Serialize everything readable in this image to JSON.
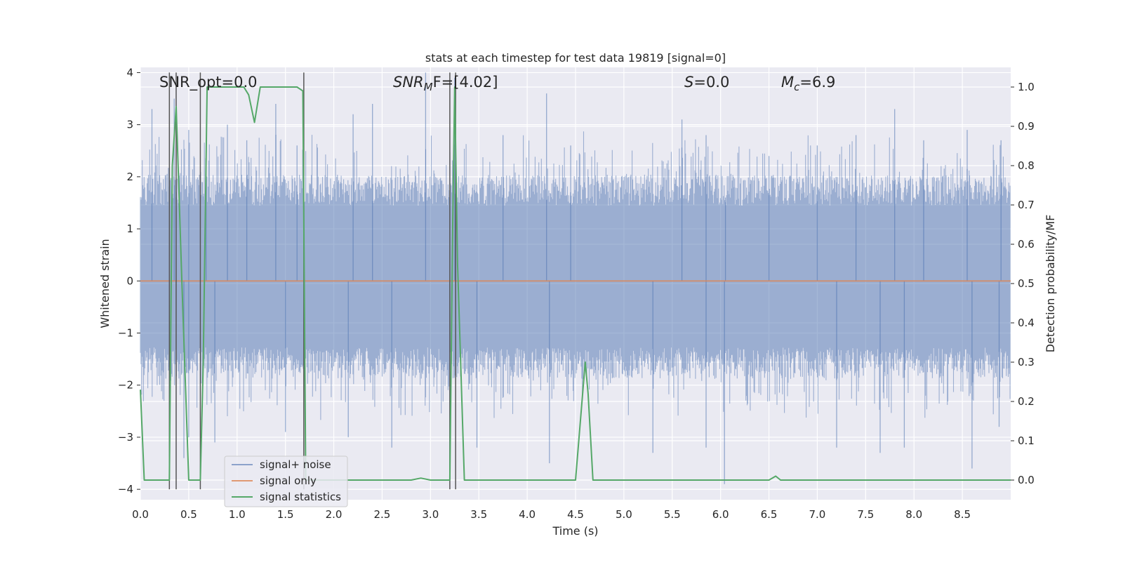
{
  "colors": {
    "background": "#ffffff",
    "plot_background": "#eaeaf2",
    "grid": "#ffffff",
    "signal_noise": "#4c72b0",
    "signal_only": "#dd8452",
    "statistics": "#55a868",
    "marker_line": "#555555"
  },
  "chart_data": {
    "type": "line",
    "title": "stats at each timestep for test data 19819 [signal=0]",
    "xlabel": "Time (s)",
    "ylabel": "Whitened strain",
    "ylabel_right": "Detection probability/MF",
    "xlim": [
      0.0,
      9.0
    ],
    "ylim": [
      -4.2,
      4.1
    ],
    "ylim_right": [
      -0.05,
      1.05
    ],
    "x_ticks": [
      "0.0",
      "0.5",
      "1.0",
      "1.5",
      "2.0",
      "2.5",
      "3.0",
      "3.5",
      "4.0",
      "4.5",
      "5.0",
      "5.5",
      "6.0",
      "6.5",
      "7.0",
      "7.5",
      "8.0",
      "8.5"
    ],
    "x_tick_values": [
      0.0,
      0.5,
      1.0,
      1.5,
      2.0,
      2.5,
      3.0,
      3.5,
      4.0,
      4.5,
      5.0,
      5.5,
      6.0,
      6.5,
      7.0,
      7.5,
      8.0,
      8.5
    ],
    "y_ticks": [
      "−4",
      "−3",
      "−2",
      "−1",
      "0",
      "1",
      "2",
      "3",
      "4"
    ],
    "y_tick_values": [
      -4,
      -3,
      -2,
      -1,
      0,
      1,
      2,
      3,
      4
    ],
    "y_right_ticks": [
      "0.0",
      "0.1",
      "0.2",
      "0.3",
      "0.4",
      "0.5",
      "0.6",
      "0.7",
      "0.8",
      "0.9",
      "1.0"
    ],
    "y_right_tick_values": [
      0.0,
      0.1,
      0.2,
      0.3,
      0.4,
      0.5,
      0.6,
      0.7,
      0.8,
      0.9,
      1.0
    ],
    "grid": true,
    "legend_position": "lower-left",
    "annotations": {
      "snr_opt": "SNR_opt=0.0",
      "snr_mf_main": "SNR",
      "snr_mf_sub": "M",
      "snr_mf_rest": "F=[4.02]",
      "s_sym": "S",
      "s_val": "=0.0",
      "mc_sym": "M",
      "mc_sub": "c",
      "mc_val": "=6.9"
    },
    "noise_envelope": {
      "description_level": "signal+ noise, whitened strain amplitude envelope",
      "upper_typical": 1.7,
      "lower_typical": -1.5,
      "peak_times": [
        0.12,
        0.35,
        0.5,
        0.68,
        0.9,
        1.1,
        1.4,
        1.62,
        2.2,
        2.4,
        2.95,
        3.25,
        3.75,
        4.2,
        4.45,
        5.6,
        5.85,
        6.05,
        6.5,
        7.0,
        7.4,
        7.8,
        8.1,
        8.55,
        8.9
      ],
      "peak_highs": [
        3.3,
        3.5,
        2.9,
        2.7,
        3.0,
        2.7,
        3.4,
        2.6,
        3.2,
        3.4,
        4.0,
        3.9,
        2.8,
        3.6,
        2.6,
        3.1,
        2.8,
        1.6,
        2.4,
        2.6,
        2.8,
        3.3,
        2.7,
        2.9,
        2.7
      ],
      "trough_times": [
        0.45,
        0.5,
        0.77,
        1.5,
        2.15,
        2.6,
        3.2,
        3.48,
        4.23,
        5.3,
        5.85,
        6.04,
        7.2,
        7.65,
        7.9,
        8.6,
        8.88
      ],
      "trough_lows": [
        -3.4,
        -3.0,
        -3.1,
        -2.9,
        -3.0,
        -3.2,
        -3.8,
        -3.2,
        -3.5,
        -3.3,
        -3.2,
        -3.9,
        -3.2,
        -3.3,
        -3.2,
        -3.6,
        -2.8
      ]
    },
    "signal_only": {
      "name": "signal only",
      "x": [
        0.0,
        9.0
      ],
      "y": [
        0.0,
        0.0
      ]
    },
    "statistics": {
      "name": "signal statistics",
      "axis": "right",
      "x": [
        0.0,
        0.04,
        0.1,
        0.3,
        0.33,
        0.37,
        0.43,
        0.5,
        0.6,
        0.62,
        0.65,
        0.69,
        0.73,
        1.07,
        1.12,
        1.18,
        1.24,
        1.62,
        1.68,
        1.71,
        1.76,
        2.5,
        2.8,
        2.9,
        3.0,
        3.2,
        3.23,
        3.25,
        3.28,
        3.35,
        3.42,
        4.5,
        4.6,
        4.63,
        4.68,
        6.5,
        6.57,
        6.62,
        9.0
      ],
      "y": [
        0.23,
        0.0,
        0.0,
        0.0,
        0.8,
        0.95,
        0.5,
        0.0,
        0.0,
        0.0,
        0.3,
        1.0,
        1.0,
        1.0,
        0.98,
        0.91,
        1.0,
        1.0,
        0.99,
        0.0,
        0.0,
        0.0,
        0.0,
        0.005,
        0.0,
        0.0,
        0.65,
        1.0,
        0.55,
        0.0,
        0.0,
        0.0,
        0.3,
        0.22,
        0.0,
        0.0,
        0.01,
        0.0,
        0.0
      ]
    },
    "vertical_markers": [
      0.3,
      0.37,
      0.62,
      1.69,
      3.2,
      3.26
    ],
    "legend": [
      "signal+ noise",
      "signal only",
      "signal statistics"
    ]
  }
}
